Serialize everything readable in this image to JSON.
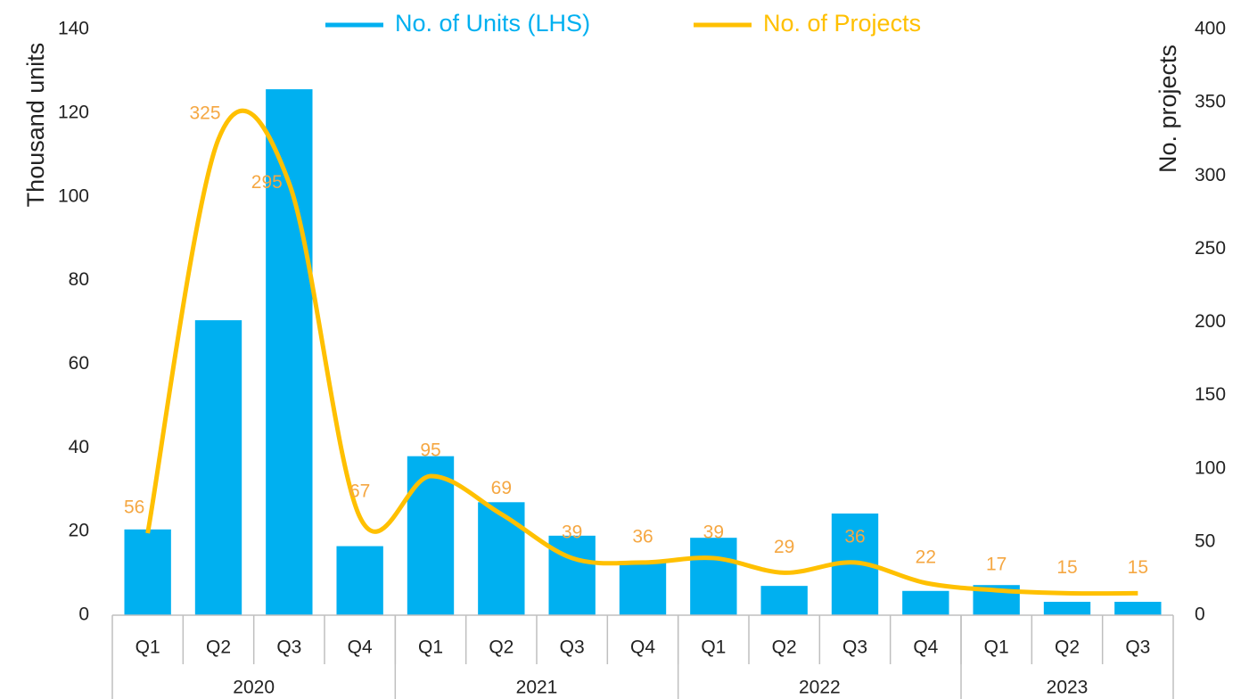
{
  "chart_data": {
    "type": "bar-line",
    "categories": [
      "Q1",
      "Q2",
      "Q3",
      "Q4",
      "Q1",
      "Q2",
      "Q3",
      "Q4",
      "Q1",
      "Q2",
      "Q3",
      "Q4",
      "Q1",
      "Q2",
      "Q3"
    ],
    "groups": [
      {
        "label": "2020",
        "count": 4
      },
      {
        "label": "2021",
        "count": 4
      },
      {
        "label": "2022",
        "count": 4
      },
      {
        "label": "2023",
        "count": 3
      }
    ],
    "series": [
      {
        "name": "No. of Units (LHS)",
        "color": "#00b0f0",
        "type": "bar",
        "values": [
          20.5,
          70.5,
          125.7,
          16.5,
          38,
          27,
          19,
          12.8,
          18.5,
          7,
          24.3,
          5.8,
          7.2,
          3.2,
          3.2
        ]
      },
      {
        "name": "No. of Projects",
        "color": "#ffc000",
        "label_color": "#f5a742",
        "type": "line",
        "axis": "y2",
        "values": [
          56,
          325,
          295,
          67,
          95,
          69,
          39,
          36,
          39,
          29,
          36,
          22,
          17,
          15,
          15
        ]
      }
    ],
    "ylabel": "Thousand units",
    "y2label": "No. projects",
    "ylim": [
      0,
      140
    ],
    "yticks": [
      0,
      20,
      40,
      60,
      80,
      100,
      120,
      140
    ],
    "y2lim": [
      0,
      400
    ],
    "y2ticks": [
      0,
      50,
      100,
      150,
      200,
      250,
      300,
      350,
      400
    ],
    "legend": "top"
  }
}
